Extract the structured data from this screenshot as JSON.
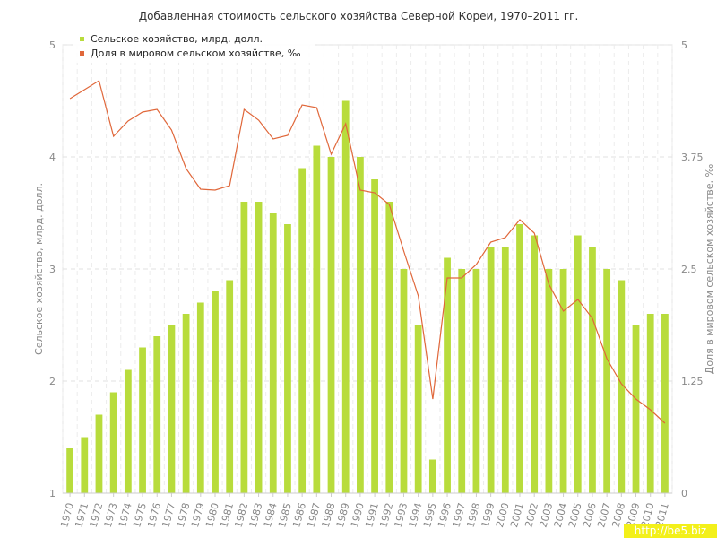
{
  "chart_data": {
    "type": "bar",
    "title": "Добавленная стоимость сельского хозяйства Северной Кореи, 1970–2011 гг.",
    "categories": [
      "1970",
      "1971",
      "1972",
      "1973",
      "1974",
      "1975",
      "1976",
      "1977",
      "1978",
      "1979",
      "1980",
      "1981",
      "1982",
      "1983",
      "1984",
      "1985",
      "1986",
      "1987",
      "1988",
      "1989",
      "1990",
      "1991",
      "1992",
      "1993",
      "1994",
      "1995",
      "1996",
      "1997",
      "1998",
      "1999",
      "2000",
      "2001",
      "2002",
      "2003",
      "2004",
      "2005",
      "2006",
      "2007",
      "2008",
      "2009",
      "2010",
      "2011"
    ],
    "series": [
      {
        "name": "Сельское хозяйство, млрд. долл.",
        "type": "bar",
        "axis": "left",
        "color": "#b8dc3c",
        "values": [
          1.4,
          1.5,
          1.7,
          1.9,
          2.1,
          2.3,
          2.4,
          2.5,
          2.6,
          2.7,
          2.8,
          2.9,
          3.6,
          3.6,
          3.5,
          3.4,
          3.9,
          4.1,
          4.0,
          4.5,
          4.0,
          3.8,
          3.6,
          3.0,
          2.5,
          1.3,
          3.1,
          3.0,
          3.0,
          3.2,
          3.2,
          3.4,
          3.3,
          3.0,
          3.0,
          3.3,
          3.2,
          3.0,
          2.9,
          2.5,
          2.6,
          2.6
        ]
      },
      {
        "name": "Доля в мировом сельском хозяйстве, ‰",
        "type": "line",
        "axis": "right",
        "color": "#e0673a",
        "values": [
          4.4,
          4.5,
          4.6,
          3.98,
          4.15,
          4.25,
          4.28,
          4.05,
          3.62,
          3.39,
          3.38,
          3.43,
          4.28,
          4.16,
          3.95,
          3.99,
          4.33,
          4.3,
          3.78,
          4.12,
          3.38,
          3.35,
          3.22,
          2.7,
          2.2,
          1.05,
          2.4,
          2.4,
          2.55,
          2.8,
          2.85,
          3.05,
          2.9,
          2.33,
          2.03,
          2.16,
          1.95,
          1.5,
          1.22,
          1.05,
          0.93,
          0.78
        ]
      }
    ],
    "ylabel": "Сельское хозяйство, млрд. долл.",
    "y2label": "Доля в мировом сельском хозяйстве, ‰",
    "xlabel": "",
    "ylim": [
      1,
      5
    ],
    "y2lim": [
      0,
      5
    ],
    "yticks": [
      "1",
      "2",
      "3",
      "4",
      "5"
    ],
    "y2ticks": [
      "0",
      "1.25",
      "2.5",
      "3.75",
      "5"
    ],
    "grid": true,
    "legend_position": "top-left"
  },
  "watermark": "http://be5.biz"
}
